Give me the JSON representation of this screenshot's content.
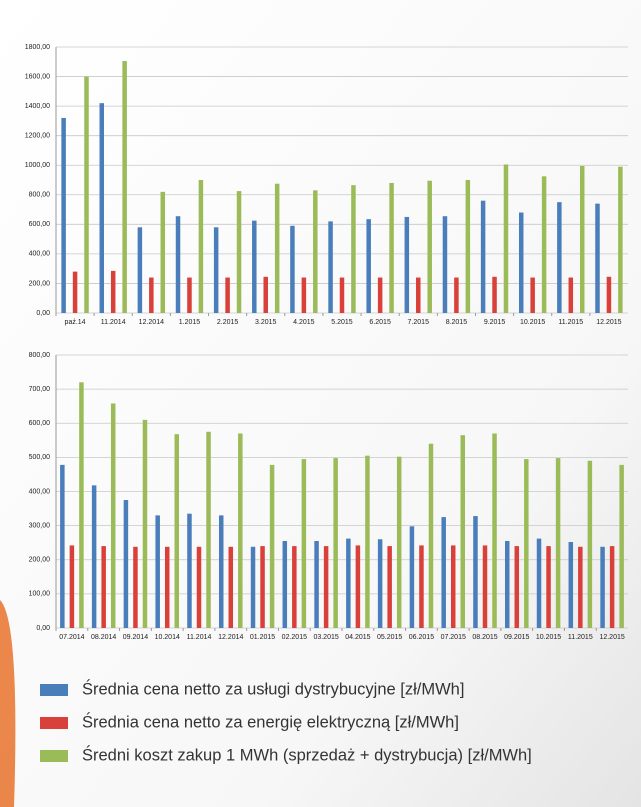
{
  "chart_data": [
    {
      "type": "bar",
      "categories": [
        "paź.14",
        "11.2014",
        "12.2014",
        "1.2015",
        "2.2015",
        "3.2015",
        "4.2015",
        "5.2015",
        "6.2015",
        "7.2015",
        "8.2015",
        "9.2015",
        "10.2015",
        "11.2015",
        "12.2015"
      ],
      "series": [
        {
          "name": "Średnia cena netto za usługi dystrybucyjne [zł/MWh]",
          "color": "#4a7ebb",
          "values": [
            1320,
            1420,
            580,
            655,
            580,
            625,
            590,
            620,
            635,
            650,
            655,
            760,
            680,
            750,
            740
          ]
        },
        {
          "name": "Średnia cena netto za energię elektryczną [zł/MWh]",
          "color": "#d9403a",
          "values": [
            280,
            285,
            240,
            240,
            240,
            245,
            240,
            240,
            240,
            240,
            240,
            245,
            240,
            240,
            245
          ]
        },
        {
          "name": "Średni koszt zakup 1 MWh (sprzedaż + dystrybucja) [zł/MWh]",
          "color": "#9bbb59",
          "values": [
            1600,
            1705,
            820,
            900,
            825,
            875,
            830,
            865,
            880,
            895,
            900,
            1005,
            925,
            995,
            990
          ]
        }
      ],
      "ylim": [
        0,
        1800
      ],
      "yticks": [
        {
          "value": 0,
          "label": "0,00"
        },
        {
          "value": 200,
          "label": "200,00"
        },
        {
          "value": 400,
          "label": "400,00"
        },
        {
          "value": 600,
          "label": "600,00"
        },
        {
          "value": 800,
          "label": "800,00"
        },
        {
          "value": 1000,
          "label": "1000,00"
        },
        {
          "value": 1200,
          "label": "1200,00"
        },
        {
          "value": 1400,
          "label": "1400,00"
        },
        {
          "value": 1600,
          "label": "1600,00"
        },
        {
          "value": 1800,
          "label": "1800,00"
        }
      ],
      "grid": true
    },
    {
      "type": "bar",
      "categories": [
        "07.2014",
        "08.2014",
        "09.2014",
        "10.2014",
        "11.2014",
        "12.2014",
        "01.2015",
        "02.2015",
        "03.2015",
        "04.2015",
        "05.2015",
        "06.2015",
        "07.2015",
        "08.2015",
        "09.2015",
        "10.2015",
        "11.2015",
        "12.2015"
      ],
      "series": [
        {
          "color": "#4a7ebb",
          "values": [
            478,
            418,
            375,
            330,
            335,
            330,
            238,
            255,
            255,
            262,
            260,
            298,
            325,
            328,
            255,
            262,
            252,
            238
          ]
        },
        {
          "color": "#d9403a",
          "values": [
            242,
            240,
            238,
            238,
            238,
            238,
            240,
            240,
            240,
            242,
            240,
            242,
            242,
            242,
            240,
            240,
            238,
            240
          ]
        },
        {
          "color": "#9bbb59",
          "values": [
            720,
            658,
            610,
            568,
            575,
            570,
            478,
            495,
            498,
            505,
            502,
            540,
            565,
            570,
            495,
            498,
            490,
            478
          ]
        }
      ],
      "ylim": [
        0,
        800
      ],
      "yticks": [
        {
          "value": 0,
          "label": "0,00"
        },
        {
          "value": 100,
          "label": "100,00"
        },
        {
          "value": 200,
          "label": "200,00"
        },
        {
          "value": 300,
          "label": "300,00"
        },
        {
          "value": 400,
          "label": "400,00"
        },
        {
          "value": 500,
          "label": "500,00"
        },
        {
          "value": 600,
          "label": "600,00"
        },
        {
          "value": 700,
          "label": "700,00"
        },
        {
          "value": 800,
          "label": "800,00"
        }
      ],
      "grid": true
    }
  ]
}
